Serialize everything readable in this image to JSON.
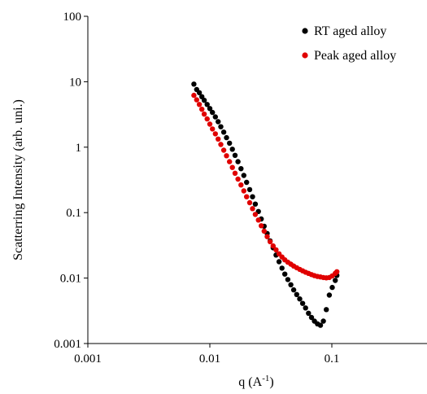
{
  "chart_data": {
    "type": "scatter",
    "title": "",
    "xlabel": "q (A-1)",
    "xlabel_main": "q (A",
    "xlabel_sup": "-1",
    "xlabel_close": ")",
    "ylabel": "Scatterring Intensity (arb. uni.)",
    "x_scale": "log",
    "y_scale": "log",
    "xlim": [
      0.001,
      1
    ],
    "ylim": [
      0.001,
      100
    ],
    "x_ticks": [
      "0.001",
      "0.01",
      "0.1"
    ],
    "y_ticks": [
      "100",
      "10",
      "1",
      "0.1",
      "0.01",
      "0.001"
    ],
    "grid": false,
    "legend_position": "top-right",
    "series": [
      {
        "name": "RT aged alloy",
        "color": "#000000",
        "points": [
          [
            0.0074,
            9.2
          ],
          [
            0.0078,
            7.6
          ],
          [
            0.0082,
            6.8
          ],
          [
            0.0086,
            5.9
          ],
          [
            0.009,
            5.2
          ],
          [
            0.0095,
            4.5
          ],
          [
            0.01,
            3.9
          ],
          [
            0.0105,
            3.4
          ],
          [
            0.0111,
            2.9
          ],
          [
            0.0117,
            2.45
          ],
          [
            0.0123,
            2.05
          ],
          [
            0.013,
            1.7
          ],
          [
            0.0137,
            1.4
          ],
          [
            0.0145,
            1.15
          ],
          [
            0.0153,
            0.93
          ],
          [
            0.0161,
            0.75
          ],
          [
            0.017,
            0.6
          ],
          [
            0.018,
            0.47
          ],
          [
            0.019,
            0.37
          ],
          [
            0.02,
            0.29
          ],
          [
            0.0212,
            0.225
          ],
          [
            0.0224,
            0.175
          ],
          [
            0.0236,
            0.135
          ],
          [
            0.025,
            0.104
          ],
          [
            0.0264,
            0.08
          ],
          [
            0.0279,
            0.062
          ],
          [
            0.0295,
            0.048
          ],
          [
            0.0312,
            0.037
          ],
          [
            0.033,
            0.029
          ],
          [
            0.0349,
            0.0225
          ],
          [
            0.0369,
            0.0178
          ],
          [
            0.039,
            0.0142
          ],
          [
            0.0412,
            0.0115
          ],
          [
            0.0436,
            0.0095
          ],
          [
            0.0461,
            0.0079
          ],
          [
            0.0487,
            0.0066
          ],
          [
            0.0515,
            0.0056
          ],
          [
            0.0545,
            0.0048
          ],
          [
            0.0576,
            0.0041
          ],
          [
            0.0609,
            0.0035
          ],
          [
            0.0644,
            0.0029
          ],
          [
            0.0681,
            0.0025
          ],
          [
            0.072,
            0.0022
          ],
          [
            0.0762,
            0.002
          ],
          [
            0.0806,
            0.0019
          ],
          [
            0.0852,
            0.0022
          ],
          [
            0.0901,
            0.0033
          ],
          [
            0.0953,
            0.0055
          ],
          [
            0.1008,
            0.0072
          ],
          [
            0.1066,
            0.0092
          ],
          [
            0.11,
            0.011
          ]
        ]
      },
      {
        "name": "Peak aged alloy",
        "color": "#e00000",
        "points": [
          [
            0.0074,
            6.2
          ],
          [
            0.0078,
            5.3
          ],
          [
            0.0082,
            4.5
          ],
          [
            0.0086,
            3.8
          ],
          [
            0.009,
            3.2
          ],
          [
            0.0095,
            2.7
          ],
          [
            0.01,
            2.25
          ],
          [
            0.0105,
            1.9
          ],
          [
            0.0111,
            1.6
          ],
          [
            0.0117,
            1.33
          ],
          [
            0.0123,
            1.1
          ],
          [
            0.013,
            0.9
          ],
          [
            0.0137,
            0.74
          ],
          [
            0.0145,
            0.6
          ],
          [
            0.0153,
            0.49
          ],
          [
            0.0161,
            0.4
          ],
          [
            0.017,
            0.325
          ],
          [
            0.018,
            0.265
          ],
          [
            0.019,
            0.215
          ],
          [
            0.02,
            0.175
          ],
          [
            0.0212,
            0.142
          ],
          [
            0.0224,
            0.115
          ],
          [
            0.0236,
            0.094
          ],
          [
            0.025,
            0.077
          ],
          [
            0.0264,
            0.063
          ],
          [
            0.0279,
            0.052
          ],
          [
            0.0295,
            0.043
          ],
          [
            0.0312,
            0.036
          ],
          [
            0.033,
            0.031
          ],
          [
            0.0349,
            0.027
          ],
          [
            0.0369,
            0.0235
          ],
          [
            0.039,
            0.021
          ],
          [
            0.0412,
            0.019
          ],
          [
            0.0436,
            0.0175
          ],
          [
            0.0461,
            0.0163
          ],
          [
            0.0487,
            0.0153
          ],
          [
            0.0515,
            0.0144
          ],
          [
            0.0545,
            0.0136
          ],
          [
            0.0576,
            0.0129
          ],
          [
            0.0609,
            0.0123
          ],
          [
            0.0644,
            0.0118
          ],
          [
            0.0681,
            0.0113
          ],
          [
            0.072,
            0.0109
          ],
          [
            0.0762,
            0.0106
          ],
          [
            0.0806,
            0.0104
          ],
          [
            0.0852,
            0.0102
          ],
          [
            0.0901,
            0.0101
          ],
          [
            0.0953,
            0.0102
          ],
          [
            0.1008,
            0.0108
          ],
          [
            0.1066,
            0.0118
          ],
          [
            0.11,
            0.0125
          ]
        ]
      }
    ]
  }
}
